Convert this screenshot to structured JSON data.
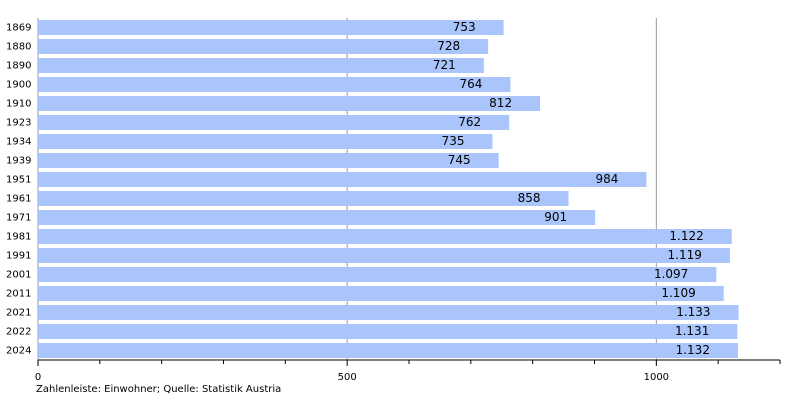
{
  "chart_data": {
    "type": "bar",
    "orientation": "horizontal",
    "categories": [
      "1869",
      "1880",
      "1890",
      "1900",
      "1910",
      "1923",
      "1934",
      "1939",
      "1951",
      "1961",
      "1971",
      "1981",
      "1991",
      "2001",
      "2011",
      "2021",
      "2022",
      "2024"
    ],
    "values": [
      753,
      728,
      721,
      764,
      812,
      762,
      735,
      745,
      984,
      858,
      901,
      1122,
      1119,
      1097,
      1109,
      1133,
      1131,
      1132
    ],
    "value_labels": [
      "753",
      "728",
      "721",
      "764",
      "812",
      "762",
      "735",
      "745",
      "984",
      "858",
      "901",
      "1.122",
      "1.119",
      "1.097",
      "1.109",
      "1.133",
      "1.131",
      "1.132"
    ],
    "color": "#aac5fb",
    "xlim": [
      0,
      1200
    ],
    "xticks": [
      0,
      500,
      1000
    ],
    "xminorticks": [
      100,
      200,
      300,
      400,
      600,
      700,
      800,
      900,
      1100,
      1200
    ],
    "grid": true,
    "note": "Zahlenleiste: Einwohner; Quelle: Statistik Austria"
  }
}
